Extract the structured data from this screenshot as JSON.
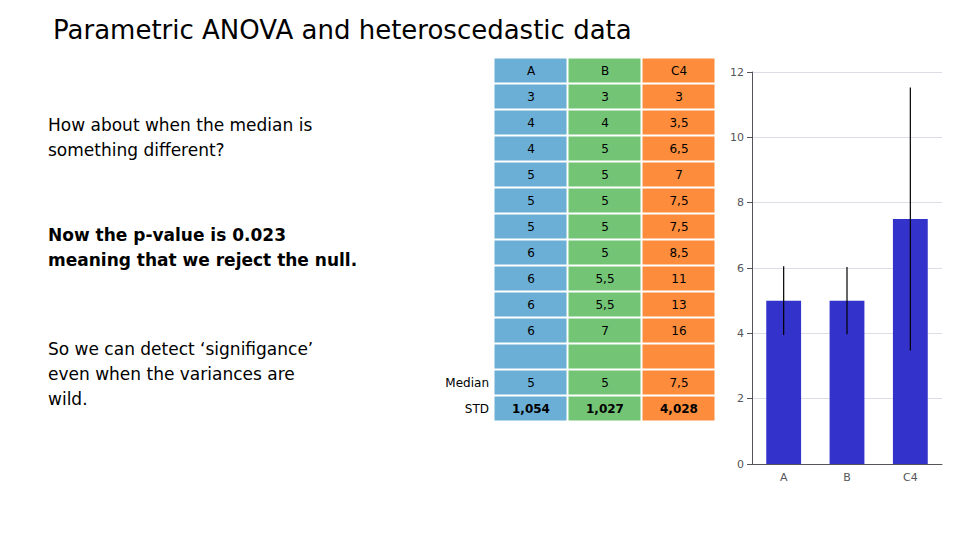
{
  "chart_data": {
    "type": "bar",
    "title": "Parametric ANOVA and heteroscedastic data",
    "annotations": [
      "How about when the median is\nsomething different?",
      "Now the p-value is 0.023\nmeaning that we reject the null.",
      "So we can detect ‘signifigance’\neven when the variances are\nwild."
    ],
    "table": {
      "columns": [
        "A",
        "B",
        "C4"
      ],
      "colors": [
        "#6baed6",
        "#74c476",
        "#fd8d3c"
      ],
      "rows": [
        [
          "3",
          "3",
          "3"
        ],
        [
          "4",
          "4",
          "3,5"
        ],
        [
          "4",
          "5",
          "6,5"
        ],
        [
          "5",
          "5",
          "7"
        ],
        [
          "5",
          "5",
          "7,5"
        ],
        [
          "5",
          "5",
          "7,5"
        ],
        [
          "6",
          "5",
          "8,5"
        ],
        [
          "6",
          "5,5",
          "11"
        ],
        [
          "6",
          "5,5",
          "13"
        ],
        [
          "6",
          "7",
          "16"
        ]
      ],
      "median_label": "Median",
      "median": [
        "5",
        "5",
        "7,5"
      ],
      "std_label": "STD",
      "std": [
        "1,054",
        "1,027",
        "4,028"
      ]
    },
    "categories": [
      "A",
      "B",
      "C4"
    ],
    "values": [
      5.0,
      5.0,
      7.5
    ],
    "errors": [
      1.054,
      1.027,
      4.028
    ],
    "color": "#3333cc",
    "ylim": [
      0,
      12
    ],
    "yticks": [
      0,
      2,
      4,
      6,
      8,
      10,
      12
    ],
    "grid": true
  }
}
